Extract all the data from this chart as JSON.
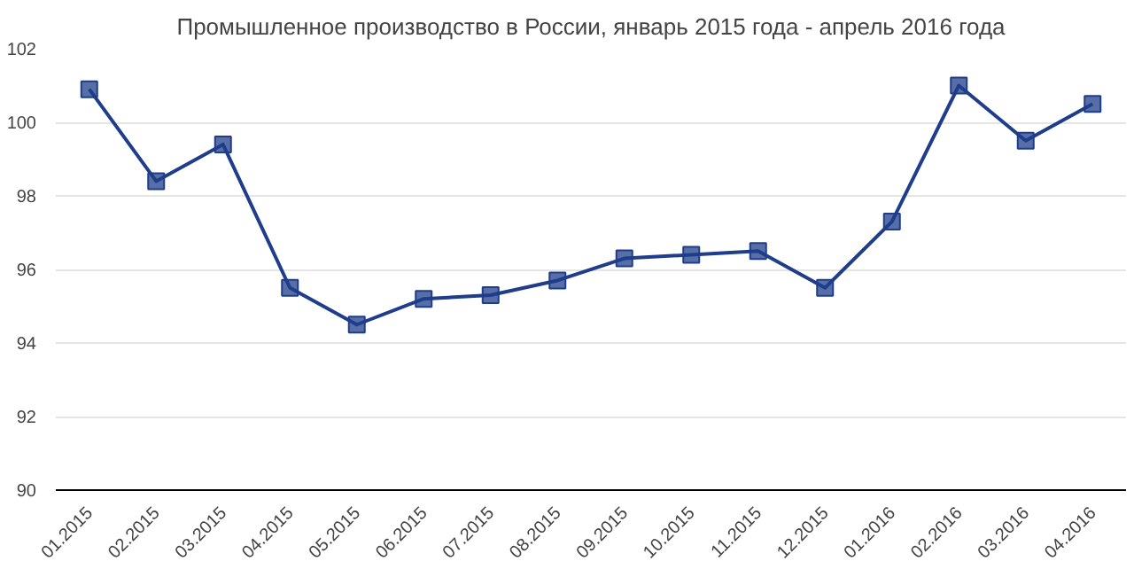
{
  "chart_data": {
    "type": "line",
    "title": "Промышленное производство в России, январь 2015 года - апрель 2016 года",
    "categories": [
      "01.2015",
      "02.2015",
      "03.2015",
      "04.2015",
      "05.2015",
      "06.2015",
      "07.2015",
      "08.2015",
      "09.2015",
      "10.2015",
      "11.2015",
      "12.2015",
      "01.2016",
      "02.2016",
      "03.2016",
      "04.2016"
    ],
    "series": [
      {
        "color": "#1f3d8a",
        "values": [
          100.9,
          98.4,
          99.4,
          95.5,
          94.5,
          95.2,
          95.3,
          95.7,
          96.3,
          96.4,
          96.5,
          95.5,
          97.3,
          101.0,
          99.5,
          100.5
        ]
      }
    ],
    "ylim": [
      90,
      102
    ],
    "yticks": [
      90,
      92,
      94,
      96,
      98,
      100,
      102
    ],
    "grid": "y",
    "marker": "square",
    "line_style": "solid"
  }
}
